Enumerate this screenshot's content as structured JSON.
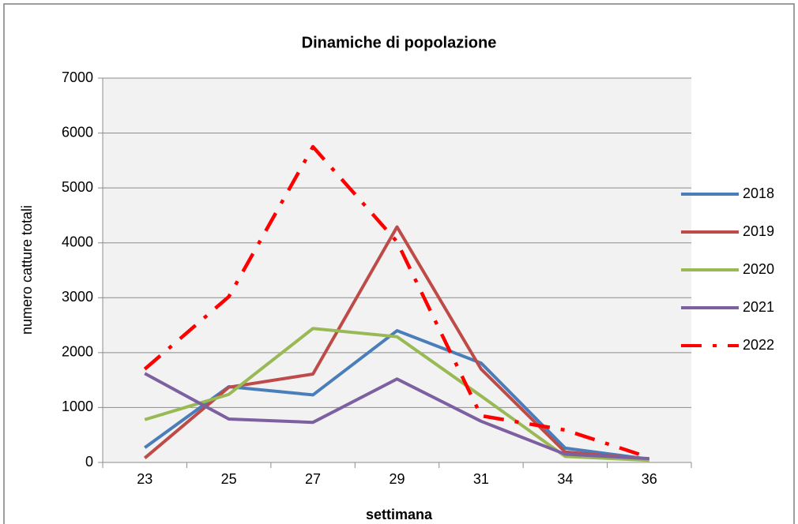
{
  "chart_data": {
    "type": "line",
    "title": "Dinamiche di popolazione",
    "x_label": "settimana",
    "y_label": "numero catture totali",
    "categories": [
      "23",
      "25",
      "27",
      "29",
      "31",
      "34",
      "36"
    ],
    "series": [
      {
        "name": "2018",
        "color": "#4a7ebb",
        "values": [
          270,
          1380,
          1230,
          2400,
          1810,
          260,
          60
        ]
      },
      {
        "name": "2019",
        "color": "#be4b48",
        "values": [
          80,
          1370,
          1610,
          4290,
          1700,
          190,
          60
        ]
      },
      {
        "name": "2020",
        "color": "#98b954",
        "values": [
          780,
          1240,
          2440,
          2290,
          1210,
          110,
          40
        ]
      },
      {
        "name": "2021",
        "color": "#7d60a0",
        "values": [
          1620,
          790,
          730,
          1520,
          750,
          150,
          70
        ]
      },
      {
        "name": "2022",
        "color": "#ff0000",
        "dash": "dash-dot",
        "values": [
          1700,
          3020,
          5750,
          4020,
          850,
          590,
          90
        ]
      }
    ],
    "ylim": [
      0,
      7000
    ],
    "yticks": [
      0,
      1000,
      2000,
      3000,
      4000,
      5000,
      6000,
      7000
    ],
    "grid": true,
    "legend": "right"
  }
}
